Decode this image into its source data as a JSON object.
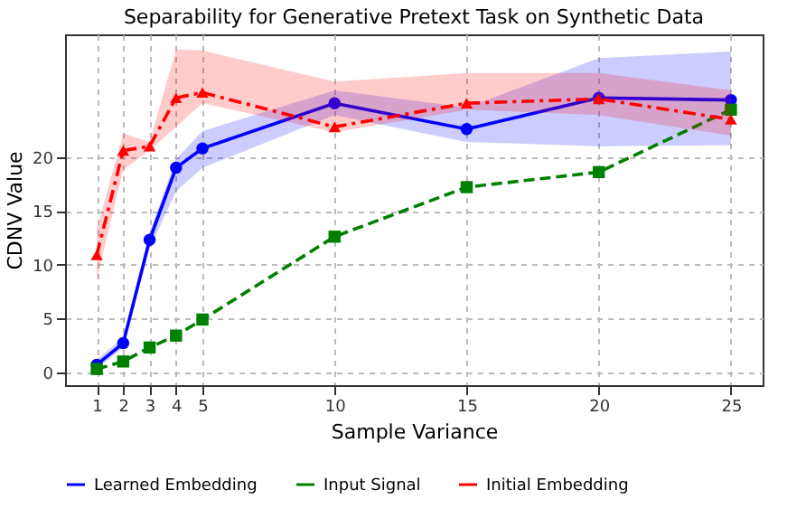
{
  "chart_data": {
    "type": "line",
    "title": "Separability for Generative Pretext Task on Synthetic Data",
    "xlabel": "Sample Variance",
    "ylabel": "CDNV Value",
    "x": [
      1,
      2,
      3,
      4,
      5,
      10,
      15,
      20,
      25
    ],
    "series": [
      {
        "name": "Learned Embedding",
        "color": "#0000ff",
        "marker": "circle",
        "line_style": "solid",
        "values": [
          0.7,
          2.7,
          12.3,
          19,
          20.8,
          25,
          22.6,
          25.5,
          25.3
        ],
        "lower": [
          0.3,
          2.3,
          11.5,
          16.8,
          19,
          23.9,
          21.4,
          21,
          21.1
        ],
        "upper": [
          1.2,
          3.2,
          13,
          19.8,
          22.4,
          26.2,
          24.6,
          29.2,
          29.8
        ]
      },
      {
        "name": "Input Signal",
        "color": "#008000",
        "marker": "square",
        "line_style": "dashed",
        "values": [
          0.3,
          1,
          2.3,
          3.4,
          4.9,
          12.6,
          17.2,
          18.6,
          24.4
        ]
      },
      {
        "name": "Initial Embedding",
        "color": "#ff0000",
        "marker": "triangle",
        "line_style": "dashdot",
        "values": [
          10.9,
          20.6,
          21,
          25.5,
          26,
          22.8,
          25,
          25.4,
          23.5
        ],
        "lower": [
          8.6,
          18.8,
          20.6,
          22.8,
          25,
          22.3,
          24.4,
          23.9,
          22
        ],
        "upper": [
          13.3,
          22.2,
          21.4,
          30,
          29.9,
          27,
          27.8,
          27.8,
          26.2
        ]
      }
    ],
    "xlim": [
      -0.2,
      26.2
    ],
    "xticks": [
      1,
      2,
      3,
      4,
      5,
      10,
      15,
      20,
      25
    ],
    "ylim": [
      -1.2,
      31.4
    ],
    "yticks": [
      0,
      5,
      10,
      15,
      20
    ],
    "grid": true,
    "legend": "bottom"
  }
}
